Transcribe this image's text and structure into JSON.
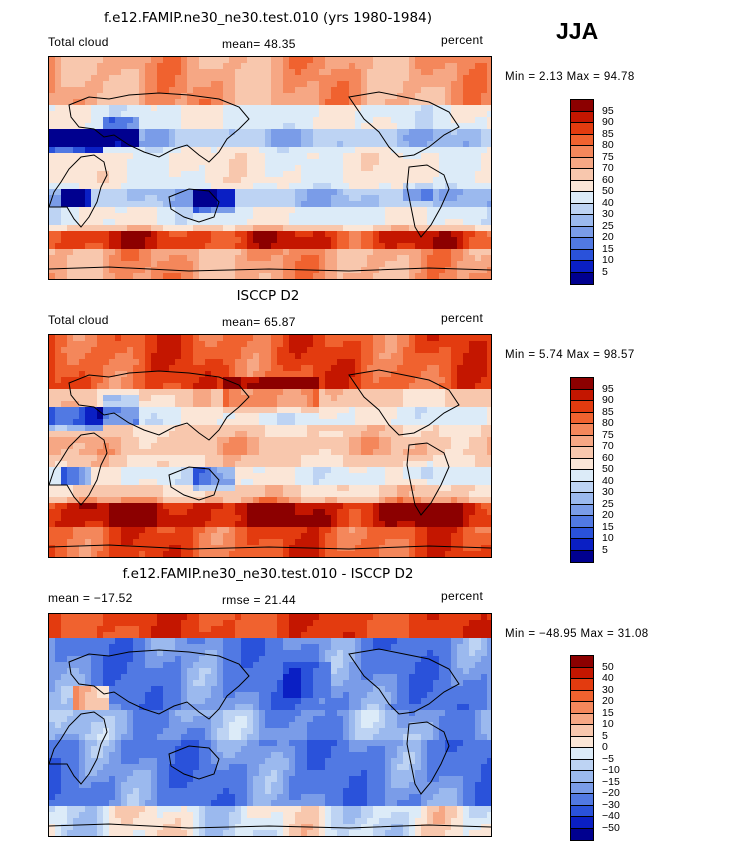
{
  "season": "JJA",
  "panels": [
    {
      "title": "f.e12.FAMIP.ne30_ne30.test.010 (yrs 1980-1984)",
      "left_label": "Total cloud",
      "center_label": "mean=   48.35",
      "right_label": "percent",
      "stats": "Min =    2.13  Max =   94.78",
      "palette": "abs",
      "field": "model"
    },
    {
      "title": "ISCCP D2",
      "left_label": "Total cloud",
      "center_label": "mean=   65.87",
      "right_label": "percent",
      "stats": "Min =    5.74  Max =   98.57",
      "palette": "abs",
      "field": "obs"
    },
    {
      "title": "f.e12.FAMIP.ne30_ne30.test.010 - ISCCP D2",
      "left_label": "mean = −17.52",
      "center_label": "rmse =   21.44",
      "right_label": "percent",
      "stats": "Min = −48.95  Max =   31.08",
      "palette": "diff",
      "field": "diff"
    }
  ],
  "chart_data": [
    {
      "type": "heatmap",
      "title": "f.e12.FAMIP.ne30_ne30.test.010 (yrs 1980-1984)",
      "variable": "Total cloud",
      "units": "percent",
      "mean": 48.35,
      "min": 2.13,
      "max": 94.78,
      "contour_levels": [
        5,
        10,
        15,
        20,
        25,
        30,
        40,
        50,
        60,
        70,
        75,
        80,
        85,
        90,
        95
      ]
    },
    {
      "type": "heatmap",
      "title": "ISCCP D2",
      "variable": "Total cloud",
      "units": "percent",
      "mean": 65.87,
      "min": 5.74,
      "max": 98.57,
      "contour_levels": [
        5,
        10,
        15,
        20,
        25,
        30,
        40,
        50,
        60,
        70,
        75,
        80,
        85,
        90,
        95
      ]
    },
    {
      "type": "heatmap",
      "title": "f.e12.FAMIP.ne30_ne30.test.010 - ISCCP D2",
      "units": "percent",
      "mean": -17.52,
      "rmse": 21.44,
      "min": -48.95,
      "max": 31.08,
      "contour_levels": [
        -50,
        -40,
        -30,
        -20,
        -15,
        -10,
        -5,
        0,
        5,
        10,
        15,
        20,
        30,
        40,
        50
      ]
    }
  ],
  "colorbars": {
    "abs": {
      "labels": [
        "95",
        "90",
        "85",
        "80",
        "75",
        "70",
        "60",
        "50",
        "40",
        "30",
        "25",
        "20",
        "15",
        "10",
        "5"
      ],
      "colors": [
        "#8c0000",
        "#c41600",
        "#e33b0f",
        "#f0622f",
        "#f4875b",
        "#f6a784",
        "#f8c7ad",
        "#fbe6d7",
        "#dcebf8",
        "#bdd3f3",
        "#9bb9ee",
        "#7a9ce8",
        "#5179e3",
        "#2a52da",
        "#0a1fc4",
        "#00008f"
      ]
    },
    "diff": {
      "labels": [
        "50",
        "40",
        "30",
        "20",
        "15",
        "10",
        "5",
        "0",
        "−5",
        "−10",
        "−15",
        "−20",
        "−30",
        "−40",
        "−50"
      ],
      "colors": [
        "#8c0000",
        "#c41600",
        "#e33b0f",
        "#f0622f",
        "#f4875b",
        "#f6a784",
        "#f8c7ad",
        "#fbe6d7",
        "#dcebf8",
        "#bdd3f3",
        "#9bb9ee",
        "#7a9ce8",
        "#5179e3",
        "#2a52da",
        "#0a1fc4",
        "#00008f"
      ]
    }
  }
}
